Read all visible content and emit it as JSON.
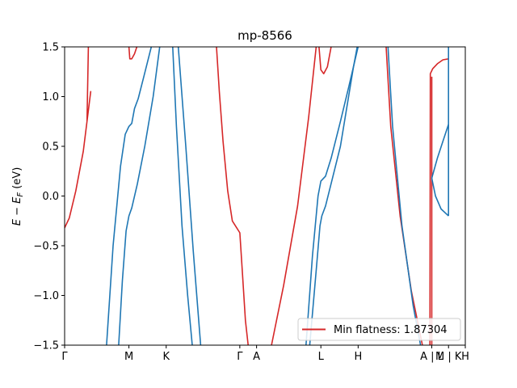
{
  "chart_data": {
    "type": "line",
    "title": "mp-8566",
    "ylabel": "E − E_F (eV)",
    "ylabel_parts": {
      "main": "E − E",
      "sub": "F",
      "unit": " (eV)"
    },
    "ylim": [
      -1.5,
      1.5
    ],
    "yticks": [
      -1.5,
      -1.0,
      -0.5,
      0.0,
      0.5,
      1.0,
      1.5
    ],
    "ytick_labels": [
      "−1.5",
      "−1.0",
      "−0.5",
      "0.0",
      "0.5",
      "1.0",
      "1.5"
    ],
    "xlim": [
      0,
      4.3
    ],
    "kpoints": [
      {
        "label": "Γ",
        "x": 0.0
      },
      {
        "label": "M",
        "x": 0.69
      },
      {
        "label": "K",
        "x": 1.09
      },
      {
        "label": "Γ",
        "x": 1.88
      },
      {
        "label": "A",
        "x": 2.06
      },
      {
        "label": "L",
        "x": 2.75
      },
      {
        "label": "H",
        "x": 3.15
      },
      {
        "label": "A | L",
        "x": 3.94
      },
      {
        "label": "M | K",
        "x": 4.12
      },
      {
        "label": "H",
        "x": 4.3
      }
    ],
    "legend": {
      "label": "Min flatness: 1.87304",
      "color": "#d62728",
      "position": "lower-right"
    },
    "series": [
      {
        "color": "#d62728",
        "points": [
          [
            0.0,
            -0.32
          ],
          [
            0.05,
            -0.22
          ],
          [
            0.12,
            0.05
          ],
          [
            0.2,
            0.45
          ],
          [
            0.28,
            1.05
          ],
          [
            0.24,
            0.75
          ],
          [
            0.255,
            1.5
          ]
        ]
      },
      {
        "color": "#d62728",
        "points": [
          [
            0.69,
            1.5
          ],
          [
            0.7,
            1.38
          ],
          [
            0.72,
            1.38
          ],
          [
            0.75,
            1.43
          ],
          [
            0.775,
            1.5
          ]
        ]
      },
      {
        "color": "#d62728",
        "points": [
          [
            1.63,
            1.5
          ],
          [
            1.66,
            1.05
          ],
          [
            1.7,
            0.55
          ],
          [
            1.75,
            0.05
          ],
          [
            1.8,
            -0.25
          ],
          [
            1.84,
            -0.31
          ],
          [
            1.88,
            -0.37
          ],
          [
            1.91,
            -0.8
          ],
          [
            1.94,
            -1.25
          ],
          [
            1.97,
            -1.5
          ]
        ]
      },
      {
        "color": "#d62728",
        "points": [
          [
            2.22,
            -1.5
          ],
          [
            2.35,
            -0.9
          ],
          [
            2.5,
            -0.1
          ],
          [
            2.62,
            0.8
          ],
          [
            2.7,
            1.5
          ]
        ]
      },
      {
        "color": "#d62728",
        "points": [
          [
            2.73,
            1.5
          ],
          [
            2.75,
            1.27
          ],
          [
            2.78,
            1.23
          ],
          [
            2.82,
            1.3
          ],
          [
            2.86,
            1.5
          ]
        ]
      },
      {
        "color": "#d62728",
        "points": [
          [
            3.45,
            1.5
          ],
          [
            3.5,
            0.7
          ],
          [
            3.6,
            -0.2
          ],
          [
            3.72,
            -0.95
          ],
          [
            3.84,
            -1.5
          ]
        ]
      },
      {
        "color": "#d62728",
        "points": [
          [
            3.92,
            -1.5
          ],
          [
            3.925,
            1.23
          ],
          [
            3.95,
            1.28
          ],
          [
            4.0,
            1.33
          ],
          [
            4.06,
            1.37
          ],
          [
            4.12,
            1.38
          ]
        ]
      },
      {
        "color": "#d62728",
        "points": [
          [
            3.94,
            -1.5
          ],
          [
            3.94,
            1.2
          ]
        ]
      },
      {
        "color": "#1f77b4",
        "points": [
          [
            0.45,
            -1.5
          ],
          [
            0.52,
            -0.5
          ],
          [
            0.6,
            0.3
          ],
          [
            0.65,
            0.62
          ],
          [
            0.69,
            0.7
          ],
          [
            0.72,
            0.73
          ],
          [
            0.75,
            0.88
          ],
          [
            0.79,
            0.98
          ],
          [
            0.85,
            1.2
          ],
          [
            0.93,
            1.5
          ]
        ]
      },
      {
        "color": "#1f77b4",
        "points": [
          [
            0.58,
            -1.5
          ],
          [
            0.62,
            -0.85
          ],
          [
            0.66,
            -0.35
          ],
          [
            0.69,
            -0.2
          ],
          [
            0.72,
            -0.12
          ],
          [
            0.78,
            0.12
          ],
          [
            0.86,
            0.5
          ],
          [
            0.95,
            1.0
          ],
          [
            1.02,
            1.5
          ]
        ]
      },
      {
        "color": "#1f77b4",
        "points": [
          [
            1.16,
            1.5
          ],
          [
            1.2,
            0.7
          ],
          [
            1.26,
            -0.3
          ],
          [
            1.32,
            -1.0
          ],
          [
            1.37,
            -1.5
          ]
        ]
      },
      {
        "color": "#1f77b4",
        "points": [
          [
            1.22,
            1.5
          ],
          [
            1.3,
            0.5
          ],
          [
            1.38,
            -0.55
          ],
          [
            1.46,
            -1.5
          ]
        ]
      },
      {
        "color": "#1f77b4",
        "points": [
          [
            2.59,
            -1.5
          ],
          [
            2.66,
            -0.6
          ],
          [
            2.72,
            0.0
          ],
          [
            2.75,
            0.15
          ],
          [
            2.8,
            0.2
          ],
          [
            2.86,
            0.38
          ],
          [
            2.96,
            0.75
          ],
          [
            3.05,
            1.1
          ],
          [
            3.15,
            1.5
          ]
        ]
      },
      {
        "color": "#1f77b4",
        "points": [
          [
            2.63,
            -1.5
          ],
          [
            2.7,
            -0.75
          ],
          [
            2.74,
            -0.3
          ],
          [
            2.76,
            -0.2
          ],
          [
            2.8,
            -0.1
          ],
          [
            2.88,
            0.2
          ],
          [
            2.96,
            0.5
          ],
          [
            3.03,
            0.9
          ],
          [
            3.1,
            1.3
          ],
          [
            3.14,
            1.5
          ]
        ]
      },
      {
        "color": "#1f77b4",
        "points": [
          [
            3.47,
            1.5
          ],
          [
            3.52,
            0.7
          ],
          [
            3.62,
            -0.3
          ],
          [
            3.74,
            -1.1
          ],
          [
            3.82,
            -1.5
          ]
        ]
      },
      {
        "color": "#1f77b4",
        "points": [
          [
            3.94,
            0.18
          ],
          [
            4.0,
            0.38
          ],
          [
            4.06,
            0.55
          ],
          [
            4.12,
            0.72
          ]
        ]
      },
      {
        "color": "#1f77b4",
        "points": [
          [
            3.94,
            0.18
          ],
          [
            3.98,
            0.0
          ],
          [
            4.04,
            -0.13
          ],
          [
            4.12,
            -0.2
          ]
        ]
      },
      {
        "color": "#1f77b4",
        "points": [
          [
            4.12,
            -0.2
          ],
          [
            4.12,
            1.5
          ]
        ]
      }
    ]
  }
}
